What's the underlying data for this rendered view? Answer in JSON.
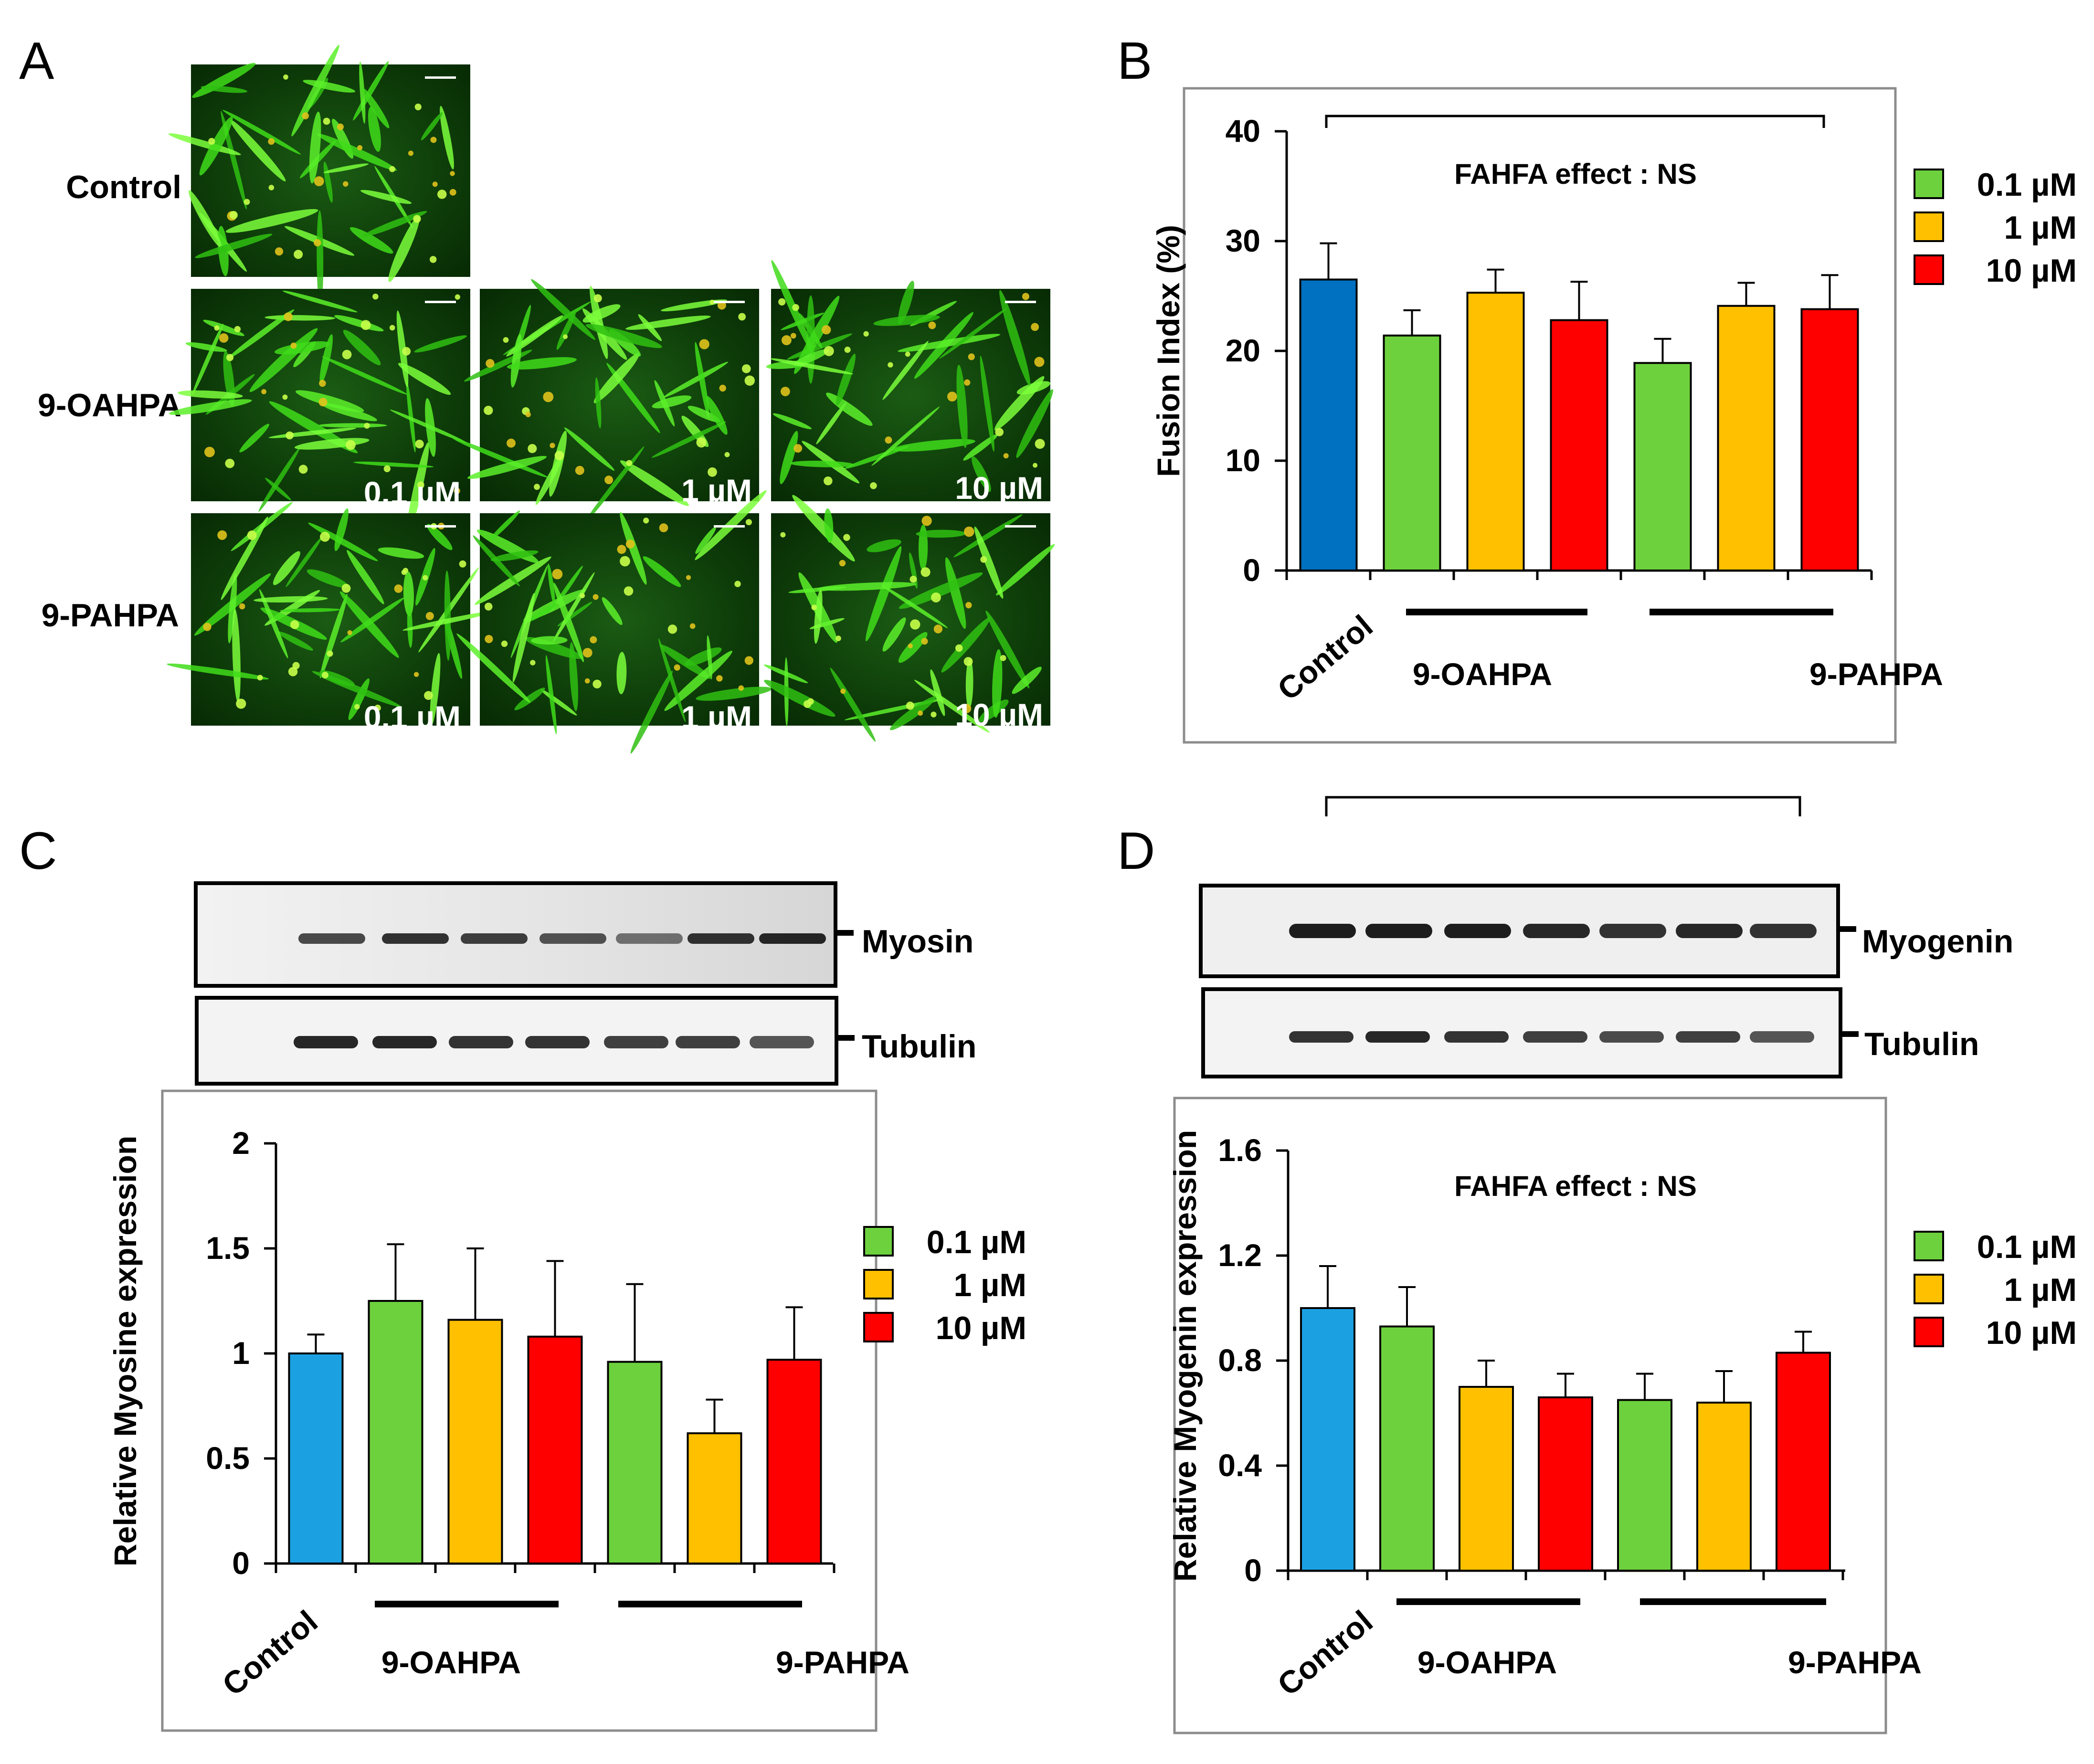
{
  "panel_letters": [
    "A",
    "B",
    "C",
    "D"
  ],
  "panel_a": {
    "row_labels": [
      "Control",
      "9-OAHPA",
      "9-PAHPA"
    ],
    "conc_labels": [
      "0.1 µM",
      "1 µM",
      "10 µM"
    ]
  },
  "panel_b": {
    "annotation": "FAHFA effect : NS"
  },
  "panel_c": {
    "blot_labels": [
      "Myosin",
      "Tubulin"
    ]
  },
  "panel_d": {
    "blot_labels": [
      "Myogenin",
      "Tubulin"
    ],
    "annotation": "FAHFA effect : NS"
  },
  "colors": {
    "control_b": "#0070c0",
    "control_cd": "#1ba1e2",
    "c01": "#6dd13d",
    "c1": "#ffc000",
    "c10": "#ff0000"
  },
  "chart_data": [
    {
      "panel": "B",
      "type": "bar",
      "ylabel": "Fusion Index (%)",
      "ylim": [
        0,
        40
      ],
      "yticks": [
        "0",
        "10",
        "20",
        "30",
        "40"
      ],
      "categories": [
        "Control",
        "0.1 µM",
        "1 µM",
        "10 µM",
        "0.1 µM",
        "1 µM",
        "10 µM"
      ],
      "values": [
        26.5,
        21.4,
        25.3,
        22.8,
        18.9,
        24.1,
        23.8
      ],
      "errors": [
        3.3,
        2.3,
        2.1,
        3.5,
        2.2,
        2.1,
        3.1
      ],
      "color_keys": [
        "control_b",
        "c01",
        "c1",
        "c10",
        "c01",
        "c1",
        "c10"
      ],
      "group_labels": [
        "Control",
        "9-OAHPA",
        "9-PAHPA"
      ],
      "legend": [
        "0.1 µM",
        "1 µM",
        "10 µM"
      ]
    },
    {
      "panel": "C",
      "type": "bar",
      "ylabel": "Relative Myosine expression",
      "ylim": [
        0,
        2
      ],
      "yticks": [
        "0",
        "0.5",
        "1",
        "1.5",
        "2"
      ],
      "categories": [
        "Control",
        "0.1 µM",
        "1 µM",
        "10 µM",
        "0.1 µM",
        "1 µM",
        "10 µM"
      ],
      "values": [
        1.0,
        1.25,
        1.16,
        1.08,
        0.96,
        0.62,
        0.97
      ],
      "errors": [
        0.09,
        0.27,
        0.34,
        0.36,
        0.37,
        0.16,
        0.25
      ],
      "color_keys": [
        "control_cd",
        "c01",
        "c1",
        "c10",
        "c01",
        "c1",
        "c10"
      ],
      "group_labels": [
        "Control",
        "9-OAHPA",
        "9-PAHPA"
      ],
      "legend": [
        "0.1 µM",
        "1 µM",
        "10 µM"
      ]
    },
    {
      "panel": "D",
      "type": "bar",
      "ylabel": "Relative Myogenin    expression",
      "ylim": [
        0,
        1.6
      ],
      "yticks": [
        "0",
        "0.4",
        "0.8",
        "1.2",
        "1.6"
      ],
      "categories": [
        "Control",
        "0.1 µM",
        "1 µM",
        "10 µM",
        "0.1 µM",
        "1 µM",
        "10 µM"
      ],
      "values": [
        1.0,
        0.93,
        0.7,
        0.66,
        0.65,
        0.64,
        0.83
      ],
      "errors": [
        0.16,
        0.15,
        0.1,
        0.09,
        0.1,
        0.12,
        0.08
      ],
      "color_keys": [
        "control_cd",
        "c01",
        "c1",
        "c10",
        "c01",
        "c1",
        "c10"
      ],
      "group_labels": [
        "Control",
        "9-OAHPA",
        "9-PAHPA"
      ],
      "legend": [
        "0.1 µM",
        "1 µM",
        "10 µM"
      ]
    }
  ]
}
